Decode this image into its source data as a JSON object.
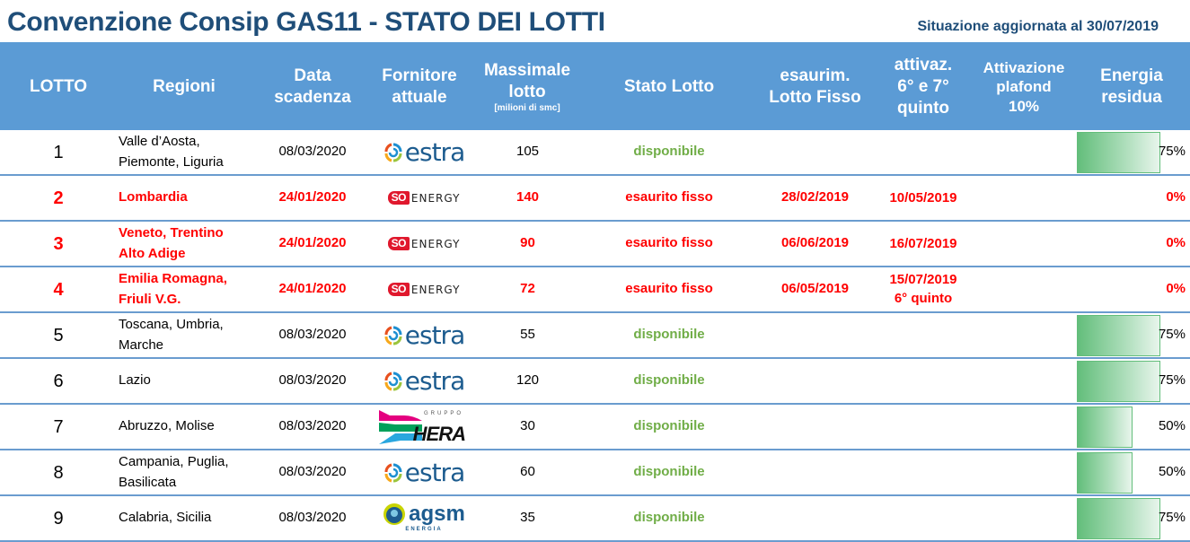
{
  "title": "Convenzione Consip GAS11 - STATO DEI LOTTI",
  "updated": "Situazione aggiornata al 30/07/2019",
  "colors": {
    "title": "#1f4e79",
    "header_bg": "#5b9bd5",
    "header_text": "#ffffff",
    "row_border": "#6a9ccf",
    "status_available": "#70ad47",
    "status_exhausted": "#ff0000",
    "energy_bar": "#63be7b"
  },
  "header": {
    "lotto": "LOTTO",
    "regioni": "Regioni",
    "data_line1": "Data",
    "data_line2": "scadenza",
    "fornitore_line1": "Fornitore",
    "fornitore_line2": "attuale",
    "massimale_line1": "Massimale",
    "massimale_line2": "lotto",
    "massimale_unit": "[milioni di smc]",
    "stato": "Stato Lotto",
    "esaurim_line1": "esaurim.",
    "esaurim_line2": "Lotto Fisso",
    "attivaz_line1": "attivaz.",
    "attivaz_line2": "6° e 7°",
    "attivaz_line3": "quinto",
    "plafond_line1": "Attivazione",
    "plafond_line2": "plafond",
    "plafond_line3": "10%",
    "energia_line1": "Energia",
    "energia_line2": "residua"
  },
  "rows": [
    {
      "lotto": "1",
      "regioni_1": "Valle d’Aosta,",
      "regioni_2": "Piemonte, Liguria",
      "data": "08/03/2020",
      "fornitore": "estra",
      "logo": "estra-logo",
      "massimale": "105",
      "stato": "disponibile",
      "esaurim": "",
      "attivaz_1": "",
      "attivaz_2": "",
      "plafond": "",
      "energia": "75%",
      "energia_value": 75,
      "exhausted": false
    },
    {
      "lotto": "2",
      "regioni_1": "Lombardia",
      "regioni_2": "",
      "data": "24/01/2020",
      "fornitore": "SOENERGY",
      "logo": "soenergy-logo",
      "massimale": "140",
      "stato": "esaurito fisso",
      "esaurim": "28/02/2019",
      "attivaz_1": "10/05/2019",
      "attivaz_2": "",
      "plafond": "",
      "energia": "0%",
      "energia_value": 0,
      "exhausted": true
    },
    {
      "lotto": "3",
      "regioni_1": "Veneto, Trentino",
      "regioni_2": "Alto Adige",
      "data": "24/01/2020",
      "fornitore": "SOENERGY",
      "logo": "soenergy-logo",
      "massimale": "90",
      "stato": "esaurito fisso",
      "esaurim": "06/06/2019",
      "attivaz_1": "16/07/2019",
      "attivaz_2": "",
      "plafond": "",
      "energia": "0%",
      "energia_value": 0,
      "exhausted": true
    },
    {
      "lotto": "4",
      "regioni_1": "Emilia Romagna,",
      "regioni_2": "Friuli V.G.",
      "data": "24/01/2020",
      "fornitore": "SOENERGY",
      "logo": "soenergy-logo",
      "massimale": "72",
      "stato": "esaurito fisso",
      "esaurim": "06/05/2019",
      "attivaz_1": "15/07/2019",
      "attivaz_2": "6° quinto",
      "plafond": "",
      "energia": "0%",
      "energia_value": 0,
      "exhausted": true
    },
    {
      "lotto": "5",
      "regioni_1": "Toscana, Umbria,",
      "regioni_2": "Marche",
      "data": "08/03/2020",
      "fornitore": "estra",
      "logo": "estra-logo",
      "massimale": "55",
      "stato": "disponibile",
      "esaurim": "",
      "attivaz_1": "",
      "attivaz_2": "",
      "plafond": "",
      "energia": "75%",
      "energia_value": 75,
      "exhausted": false
    },
    {
      "lotto": "6",
      "regioni_1": "Lazio",
      "regioni_2": "",
      "data": "08/03/2020",
      "fornitore": "estra",
      "logo": "estra-logo",
      "massimale": "120",
      "stato": "disponibile",
      "esaurim": "",
      "attivaz_1": "",
      "attivaz_2": "",
      "plafond": "",
      "energia": "75%",
      "energia_value": 75,
      "exhausted": false
    },
    {
      "lotto": "7",
      "regioni_1": "Abruzzo, Molise",
      "regioni_2": "",
      "data": "08/03/2020",
      "fornitore": "HERA",
      "logo": "hera-logo",
      "logo_sub": "GRUPPO",
      "massimale": "30",
      "stato": "disponibile",
      "esaurim": "",
      "attivaz_1": "",
      "attivaz_2": "",
      "plafond": "",
      "energia": "50%",
      "energia_value": 50,
      "exhausted": false
    },
    {
      "lotto": "8",
      "regioni_1": "Campania, Puglia,",
      "regioni_2": "Basilicata",
      "data": "08/03/2020",
      "fornitore": "estra",
      "logo": "estra-logo",
      "massimale": "60",
      "stato": "disponibile",
      "esaurim": "",
      "attivaz_1": "",
      "attivaz_2": "",
      "plafond": "",
      "energia": "50%",
      "energia_value": 50,
      "exhausted": false
    },
    {
      "lotto": "9",
      "regioni_1": "Calabria, Sicilia",
      "regioni_2": "",
      "data": "08/03/2020",
      "fornitore": "agsm",
      "logo": "agsm-logo",
      "logo_sub": "ENERGIA",
      "massimale": "35",
      "stato": "disponibile",
      "esaurim": "",
      "attivaz_1": "",
      "attivaz_2": "",
      "plafond": "",
      "energia": "75%",
      "energia_value": 75,
      "exhausted": false
    }
  ],
  "logos": {
    "estra_word": "estra",
    "so_badge": "SO",
    "so_word": "ENERGY",
    "hera_word": "HERA",
    "hera_sub": "GRUPPO",
    "agsm_word": "agsm",
    "agsm_sub": "ENERGIA"
  }
}
